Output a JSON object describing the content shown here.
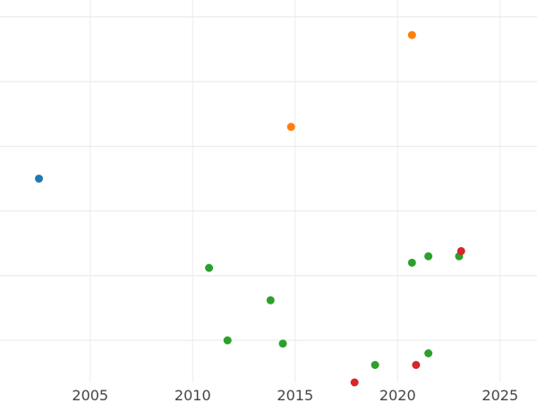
{
  "chart_data": {
    "type": "scatter",
    "title": "",
    "xlabel": "",
    "ylabel": "",
    "xlim": [
      2000.6,
      2026.8
    ],
    "ylim": [
      0.35,
      6.4
    ],
    "grid": true,
    "legend": "none",
    "x_ticks": [
      {
        "value": 2005,
        "label": "2005"
      },
      {
        "value": 2010,
        "label": "2010"
      },
      {
        "value": 2015,
        "label": "2015"
      },
      {
        "value": 2020,
        "label": "2020"
      },
      {
        "value": 2025,
        "label": "2025"
      }
    ],
    "y_gridlines": [
      1,
      2,
      3,
      4,
      5,
      6
    ],
    "series": [
      {
        "color": "#1f77b4",
        "points": [
          {
            "x": 2002.5,
            "y": 3.5
          }
        ]
      },
      {
        "color": "#ff7f0e",
        "points": [
          {
            "x": 2014.8,
            "y": 4.3
          },
          {
            "x": 2020.7,
            "y": 5.72
          }
        ]
      },
      {
        "color": "#2ca02c",
        "points": [
          {
            "x": 2010.8,
            "y": 2.12
          },
          {
            "x": 2011.7,
            "y": 1.0
          },
          {
            "x": 2013.8,
            "y": 1.62
          },
          {
            "x": 2014.4,
            "y": 0.95
          },
          {
            "x": 2018.9,
            "y": 0.62
          },
          {
            "x": 2020.7,
            "y": 2.2
          },
          {
            "x": 2021.5,
            "y": 2.3
          },
          {
            "x": 2021.5,
            "y": 0.8
          },
          {
            "x": 2023.0,
            "y": 2.3
          }
        ]
      },
      {
        "color": "#d62728",
        "points": [
          {
            "x": 2017.9,
            "y": 0.35
          },
          {
            "x": 2020.9,
            "y": 0.62
          },
          {
            "x": 2023.1,
            "y": 2.38
          }
        ]
      }
    ]
  }
}
